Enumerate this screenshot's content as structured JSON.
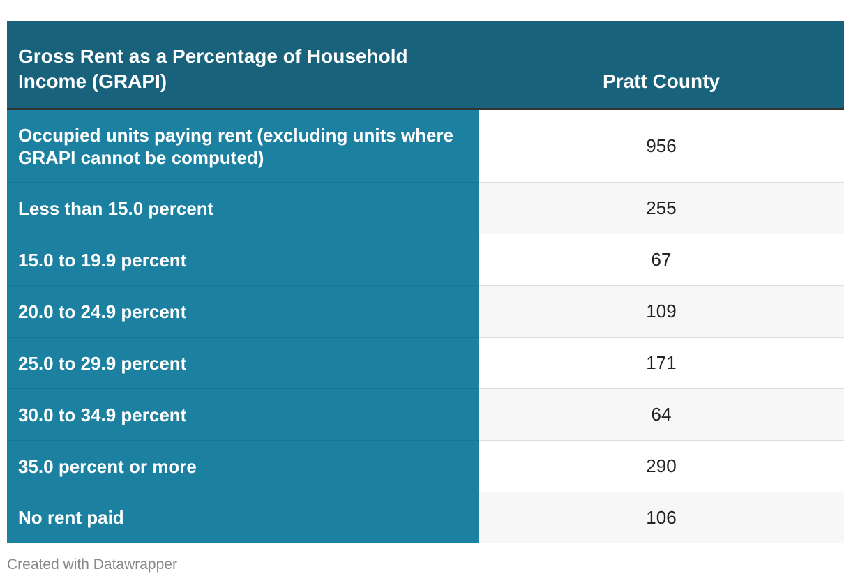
{
  "chart_data": {
    "type": "table",
    "columns": [
      "Gross Rent as a Percentage of Household Income (GRAPI)",
      "Pratt County"
    ],
    "rows": [
      {
        "label": "Occupied units paying rent (excluding units where GRAPI cannot be computed)",
        "value": "956"
      },
      {
        "label": "Less than 15.0 percent",
        "value": "255"
      },
      {
        "label": "15.0 to 19.9 percent",
        "value": "67"
      },
      {
        "label": "20.0 to 24.9 percent",
        "value": "109"
      },
      {
        "label": "25.0 to 29.9 percent",
        "value": "171"
      },
      {
        "label": "30.0 to 34.9 percent",
        "value": "64"
      },
      {
        "label": "35.0 percent or more",
        "value": "290"
      },
      {
        "label": "No rent paid",
        "value": "106"
      }
    ],
    "colors": {
      "header_bg": "#18627c",
      "label_bg": "#1c80a0",
      "stripe_bg": "#f7f7f7"
    }
  },
  "footer": {
    "credit": "Created with Datawrapper"
  }
}
